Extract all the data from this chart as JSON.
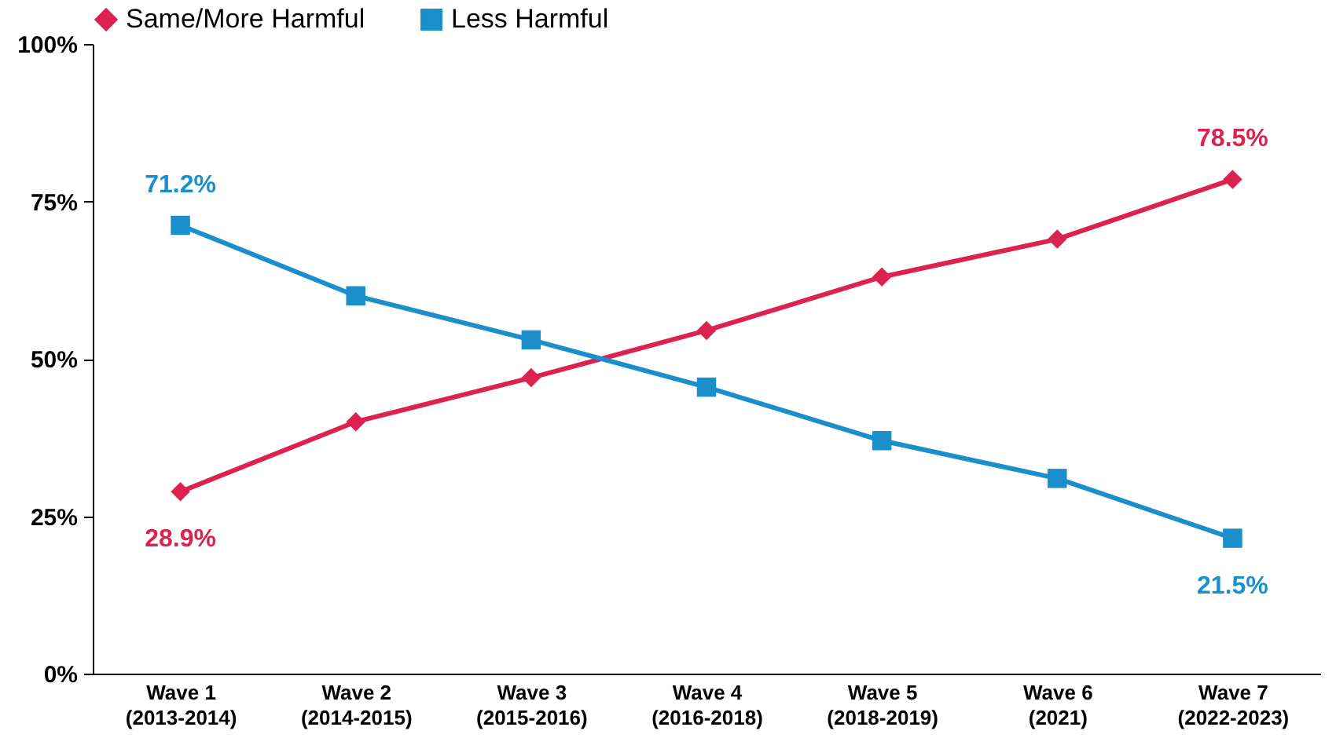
{
  "chart_data": {
    "type": "line",
    "categories": [
      "Wave 1\n(2013-2014)",
      "Wave 2\n(2014-2015)",
      "Wave 3\n(2015-2016)",
      "Wave 4\n(2016-2018)",
      "Wave 5\n(2018-2019)",
      "Wave 6\n(2021)",
      "Wave 7\n(2022-2023)"
    ],
    "series": [
      {
        "name": "Same/More Harmful",
        "color": "#dc2350",
        "marker": "diamond",
        "values": [
          28.9,
          40,
          47,
          54.5,
          63,
          69,
          78.5
        ],
        "value_labels": [
          "28.9%",
          null,
          null,
          null,
          null,
          null,
          "78.5%"
        ]
      },
      {
        "name": "Less Harmful",
        "color": "#1a8fcc",
        "marker": "square",
        "values": [
          71.2,
          60,
          53,
          45.5,
          37,
          31,
          21.5
        ],
        "value_labels": [
          "71.2%",
          null,
          null,
          null,
          null,
          null,
          "21.5%"
        ]
      }
    ],
    "ylim": [
      0,
      100
    ],
    "yticks": [
      {
        "value": 0,
        "label": "0%"
      },
      {
        "value": 25,
        "label": "25%"
      },
      {
        "value": 50,
        "label": "50%"
      },
      {
        "value": 75,
        "label": "75%"
      },
      {
        "value": 100,
        "label": "100%"
      }
    ],
    "grid": false,
    "legend": "top",
    "line_style": "solid"
  }
}
